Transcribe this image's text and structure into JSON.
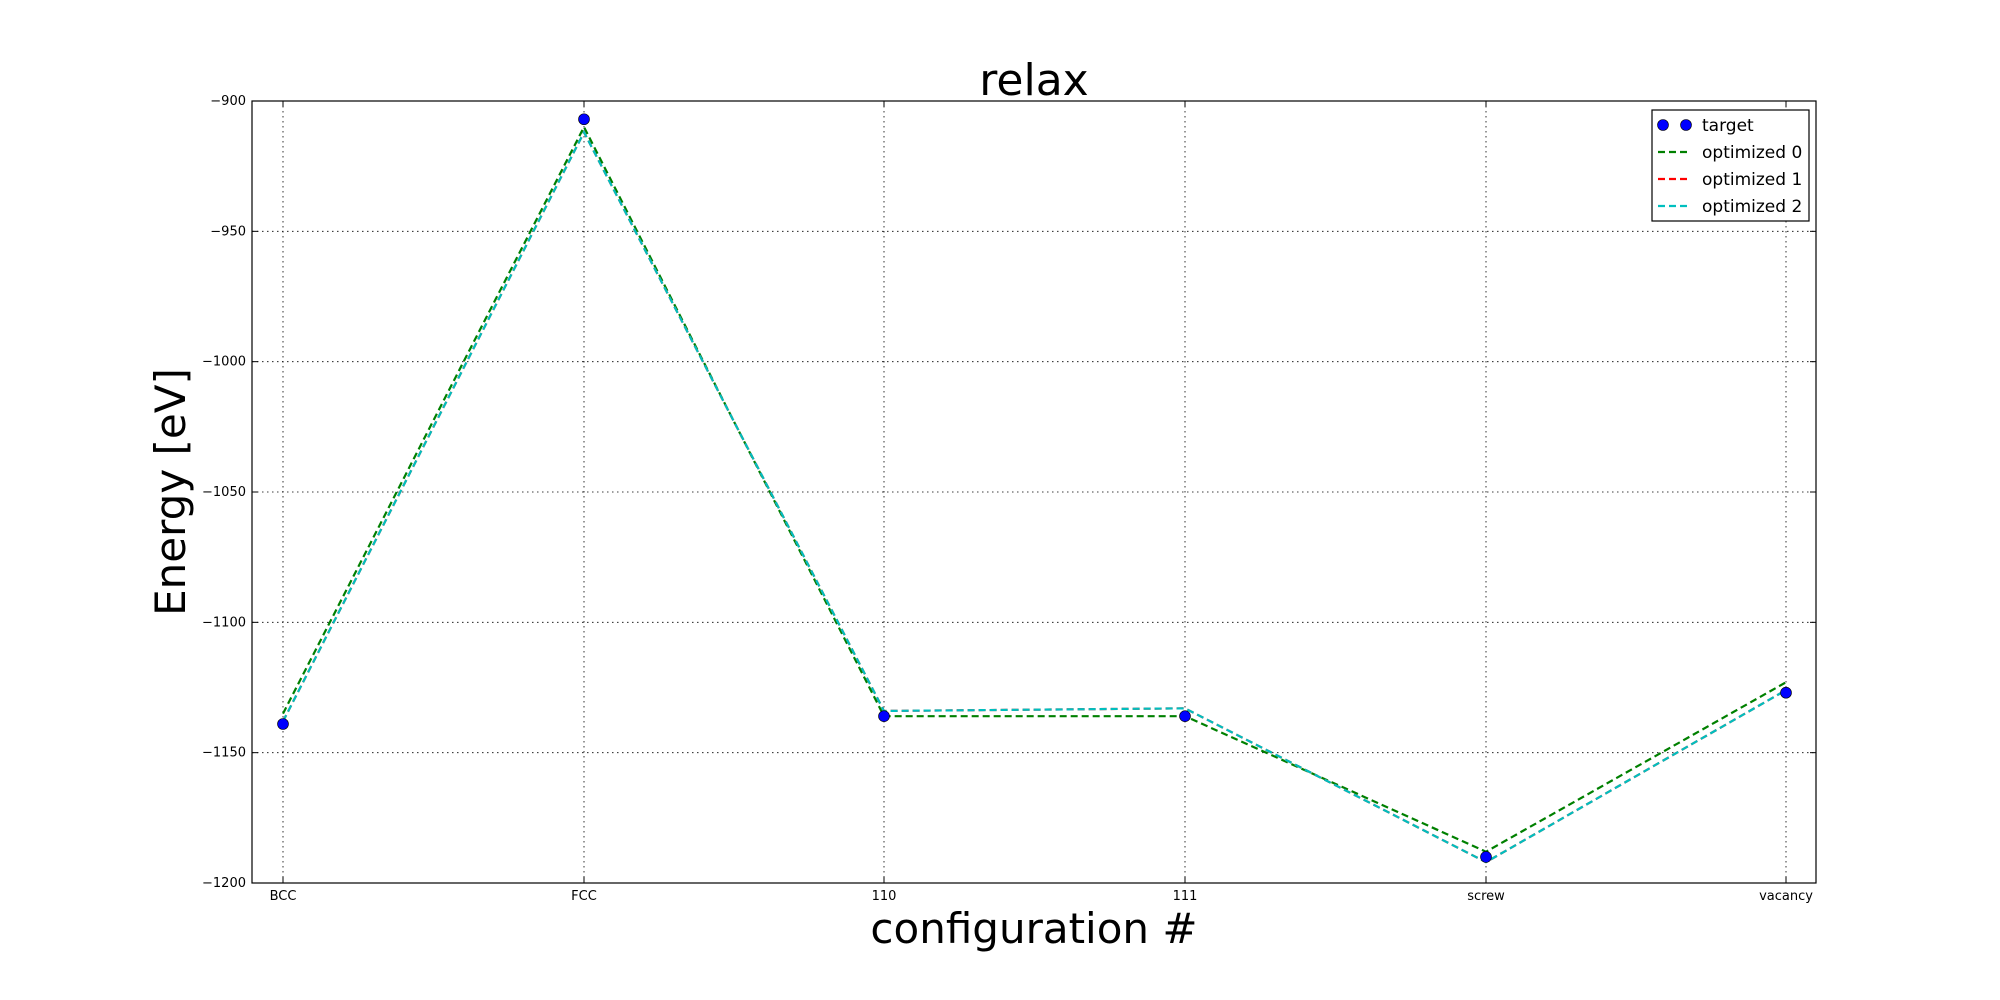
{
  "chart_data": {
    "type": "line",
    "title": "relax",
    "xlabel": "configuration #",
    "ylabel": "Energy [eV]",
    "categories": [
      "BCC",
      "FCC",
      "110",
      "111",
      "screw",
      "vacancy"
    ],
    "ylim": [
      -1200,
      -900
    ],
    "yticks": [
      -900,
      -950,
      -1000,
      -1050,
      -1100,
      -1150,
      -1200
    ],
    "ytick_labels": [
      "−900",
      "−950",
      "−1000",
      "−1050",
      "−1100",
      "−1150",
      "−1200"
    ],
    "grid": true,
    "legend_position": "top-right",
    "series": [
      {
        "name": "target",
        "style": "markers",
        "color": "#0000ff",
        "values": [
          -1139,
          -907,
          -1136,
          -1136,
          -1190,
          -1127
        ]
      },
      {
        "name": "optimized 0",
        "style": "dashed",
        "color": "#008000",
        "values": [
          -1135,
          -910,
          -1136,
          -1136,
          -1188,
          -1123
        ]
      },
      {
        "name": "optimized 1",
        "style": "dashed",
        "color": "#ff0000",
        "values": [
          -1138,
          -912,
          -1134,
          -1133,
          -1192,
          -1126
        ]
      },
      {
        "name": "optimized 2",
        "style": "dashed",
        "color": "#00bfbf",
        "values": [
          -1138,
          -912,
          -1134,
          -1133,
          -1192,
          -1126
        ]
      }
    ]
  }
}
